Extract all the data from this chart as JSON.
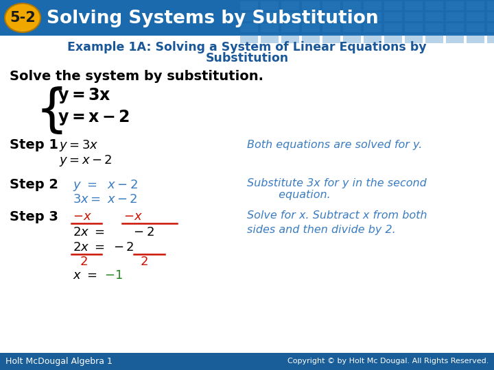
{
  "title_text": "Solving Systems by Substitution",
  "title_num": "5-2",
  "header_bg_color": "#1a6aad",
  "title_num_bg": "#f0a800",
  "body_bg": "#ffffff",
  "example_title_line1": "Example 1A: Solving a System of Linear Equations by",
  "example_title_line2": "Substitution",
  "solve_text": "Solve the system by substitution.",
  "footer_left": "Holt McDougal Algebra 1",
  "footer_right": "Copyright © by Holt Mc Dougal. All Rights Reserved.",
  "blue_dark": "#1a5799",
  "blue_mid": "#3a7cc1",
  "red_col": "#cc1100",
  "green_col": "#228822",
  "footer_bg": "#1a5e99"
}
